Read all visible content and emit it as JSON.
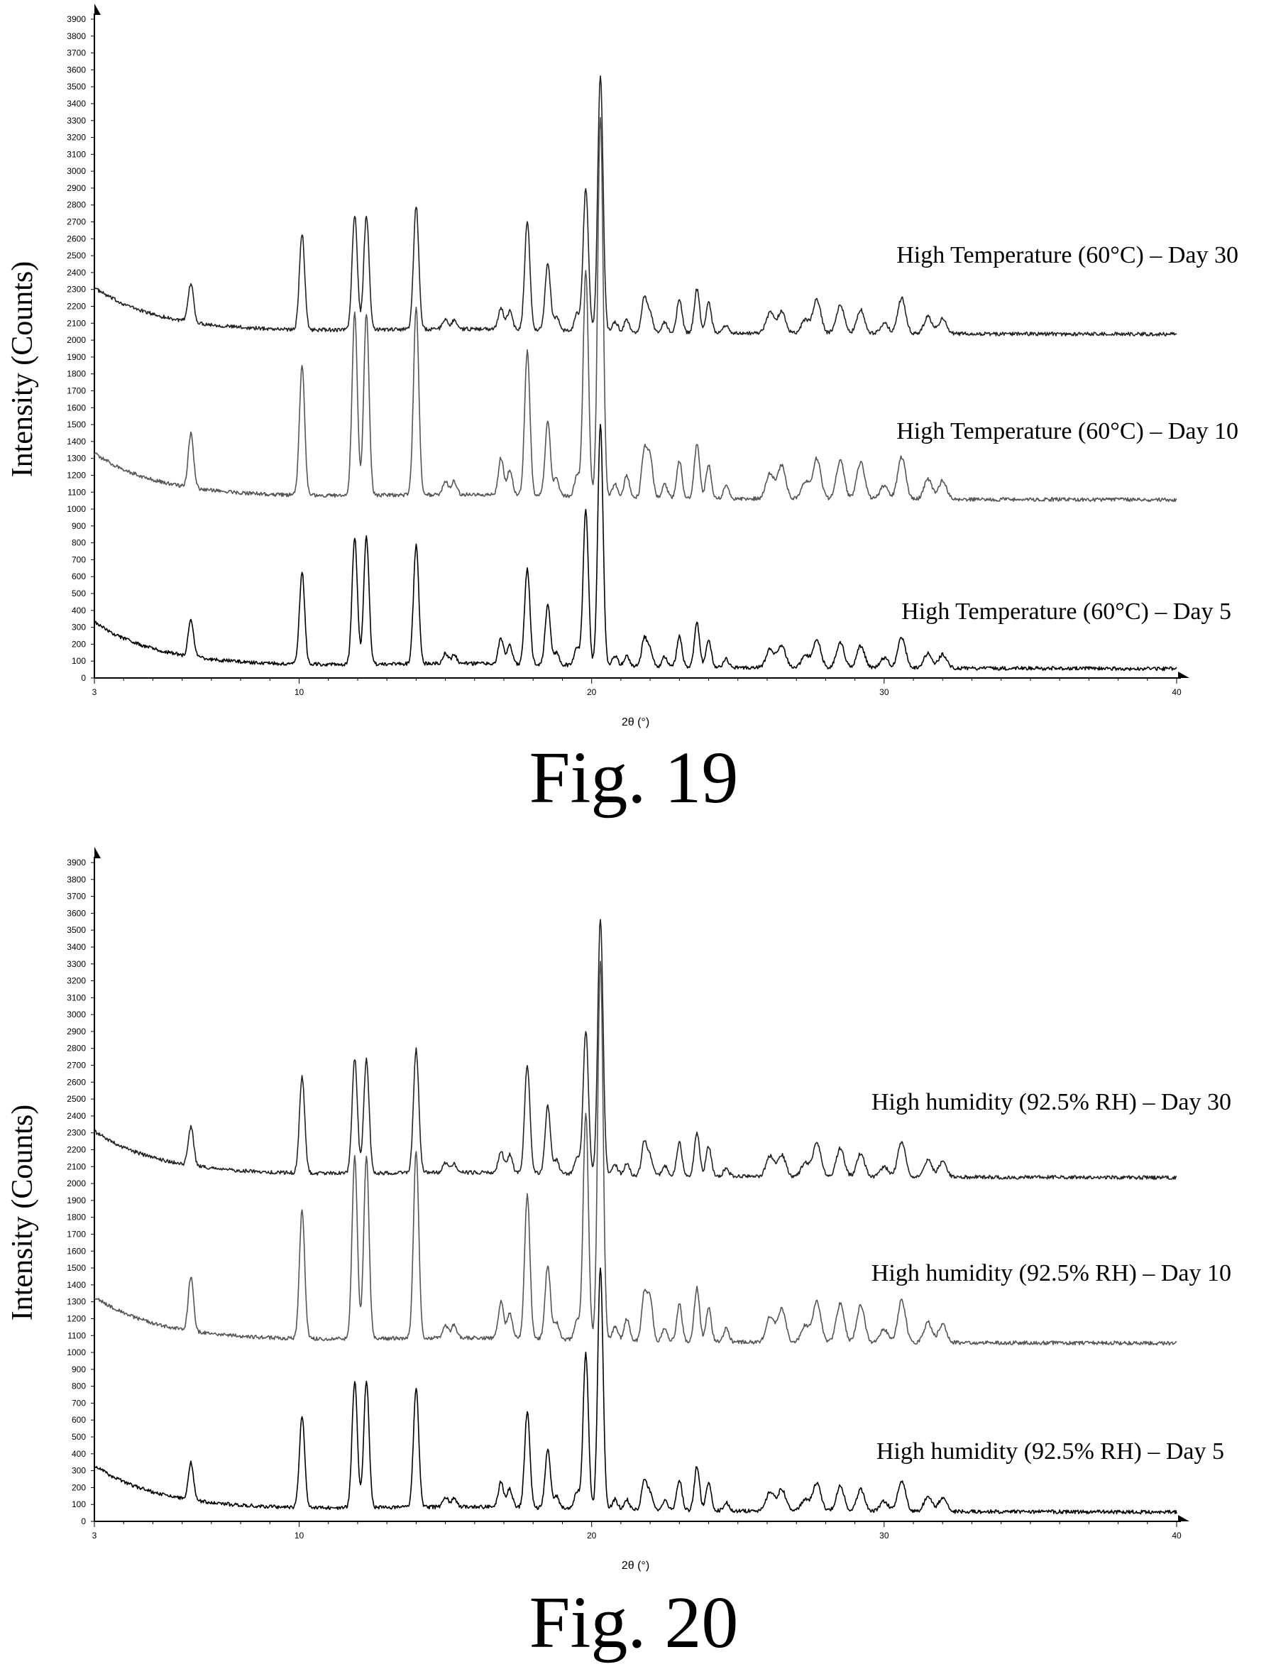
{
  "figures": [
    {
      "figure_label": "Fig. 19",
      "chart_data": {
        "type": "line",
        "xlabel": "2θ (°)",
        "ylabel": "Intensity (Counts)",
        "xlim": [
          3,
          40
        ],
        "ylim": [
          0,
          3900
        ],
        "x_ticks": [
          3,
          10,
          20,
          30,
          40
        ],
        "y_tick_step": 100,
        "peaks_2theta": [
          6.3,
          10.1,
          11.9,
          12.3,
          14.0,
          15.0,
          15.3,
          16.9,
          17.2,
          17.8,
          18.5,
          18.8,
          19.5,
          19.8,
          20.3,
          20.8,
          21.2,
          21.8,
          22.0,
          22.5,
          23.0,
          23.6,
          24.0,
          24.6,
          26.1,
          26.5,
          27.3,
          27.7,
          28.5,
          29.2,
          30.0,
          30.6,
          31.5,
          32.0
        ],
        "series": [
          {
            "name": "High Temperature (60°C) – Day 30",
            "baseline": 2050,
            "peak_heights": [
              230,
              570,
              680,
              680,
              730,
              60,
              50,
              130,
              110,
              640,
              400,
              80,
              100,
              850,
              1520,
              60,
              70,
              200,
              110,
              60,
              200,
              260,
              180,
              50,
              120,
              130,
              80,
              200,
              170,
              140,
              60,
              210,
              100,
              90
            ]
          },
          {
            "name": "High Temperature (60°C) – Day 10",
            "baseline": 1070,
            "peak_heights": [
              320,
              760,
              1080,
              1080,
              1110,
              80,
              80,
              220,
              150,
              850,
              440,
              100,
              120,
              1340,
              2250,
              80,
              130,
              280,
              250,
              80,
              220,
              320,
              200,
              80,
              150,
              200,
              100,
              240,
              230,
              220,
              80,
              250,
              120,
              110
            ]
          },
          {
            "name": "High Temperature (60°C) – Day 5",
            "baseline": 70,
            "peak_heights": [
              220,
              540,
              750,
              750,
              700,
              60,
              50,
              150,
              110,
              570,
              350,
              70,
              100,
              920,
              1430,
              60,
              60,
              170,
              100,
              60,
              180,
              260,
              160,
              50,
              110,
              130,
              70,
              170,
              150,
              130,
              60,
              180,
              90,
              80
            ]
          }
        ]
      }
    },
    {
      "figure_label": "Fig. 20",
      "chart_data": {
        "type": "line",
        "xlabel": "2θ (°)",
        "ylabel": "Intensity (Counts)",
        "xlim": [
          3,
          40
        ],
        "ylim": [
          0,
          3900
        ],
        "x_ticks": [
          3,
          10,
          20,
          30,
          40
        ],
        "y_tick_step": 100,
        "peaks_2theta": [
          6.3,
          10.1,
          11.9,
          12.3,
          14.0,
          15.0,
          15.3,
          16.9,
          17.2,
          17.8,
          18.5,
          18.8,
          19.5,
          19.8,
          20.3,
          20.8,
          21.2,
          21.8,
          22.0,
          22.5,
          23.0,
          23.6,
          24.0,
          24.6,
          26.1,
          26.5,
          27.3,
          27.7,
          28.5,
          29.2,
          30.0,
          30.6,
          31.5,
          32.0
        ],
        "series": [
          {
            "name": "High humidity (92.5% RH) – Day 30",
            "baseline": 2050,
            "peak_heights": [
              230,
              570,
              680,
              680,
              730,
              60,
              50,
              130,
              110,
              640,
              400,
              80,
              100,
              850,
              1520,
              60,
              70,
              200,
              110,
              60,
              200,
              260,
              180,
              50,
              120,
              130,
              80,
              200,
              170,
              140,
              60,
              210,
              100,
              90
            ]
          },
          {
            "name": "High humidity (92.5% RH) – Day 10",
            "baseline": 1070,
            "peak_heights": [
              320,
              760,
              1080,
              1080,
              1110,
              80,
              80,
              220,
              150,
              850,
              440,
              100,
              120,
              1340,
              2250,
              80,
              130,
              280,
              250,
              80,
              220,
              320,
              200,
              80,
              150,
              200,
              100,
              240,
              230,
              220,
              80,
              250,
              120,
              110
            ]
          },
          {
            "name": "High humidity (92.5% RH) – Day 5",
            "baseline": 70,
            "peak_heights": [
              220,
              540,
              750,
              750,
              700,
              60,
              50,
              150,
              110,
              570,
              350,
              70,
              100,
              920,
              1430,
              60,
              60,
              170,
              100,
              60,
              180,
              260,
              160,
              50,
              110,
              130,
              70,
              170,
              150,
              130,
              60,
              180,
              90,
              80
            ]
          }
        ]
      }
    }
  ]
}
